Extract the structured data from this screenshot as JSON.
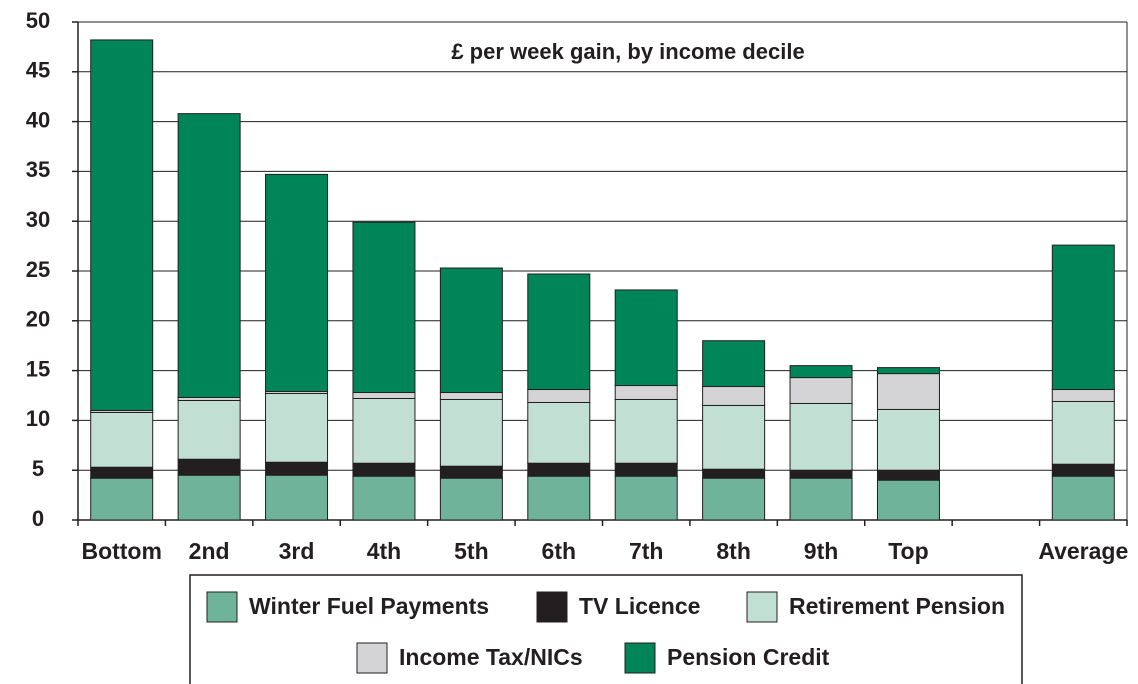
{
  "chart_data": {
    "type": "stacked_bar",
    "title": "£ per week gain, by income decile",
    "categories": [
      "Bottom",
      "2nd",
      "3rd",
      "4th",
      "5th",
      "6th",
      "7th",
      "8th",
      "9th",
      "Top",
      null,
      "Average"
    ],
    "series": [
      {
        "name": "Winter Fuel Payments",
        "color": "#6fb39a",
        "values": [
          4.2,
          4.5,
          4.5,
          4.4,
          4.2,
          4.4,
          4.4,
          4.2,
          4.2,
          4.0,
          null,
          4.4
        ]
      },
      {
        "name": "TV Licence",
        "color": "#231f20",
        "values": [
          1.1,
          1.6,
          1.3,
          1.3,
          1.2,
          1.3,
          1.3,
          0.9,
          0.8,
          1.0,
          null,
          1.2
        ]
      },
      {
        "name": "Retirement Pension",
        "color": "#c2dfd3",
        "values": [
          5.5,
          5.9,
          6.9,
          6.5,
          6.7,
          6.1,
          6.4,
          6.4,
          6.7,
          6.1,
          null,
          6.3
        ]
      },
      {
        "name": "Income Tax/NICs",
        "color": "#d4d4d6",
        "values": [
          0.2,
          0.3,
          0.2,
          0.6,
          0.7,
          1.3,
          1.4,
          1.9,
          2.6,
          3.6,
          null,
          1.2
        ]
      },
      {
        "name": "Pension Credit",
        "color": "#008558",
        "values": [
          37.2,
          28.5,
          21.8,
          17.1,
          12.5,
          11.6,
          9.6,
          4.6,
          1.2,
          0.6,
          null,
          14.5
        ]
      }
    ],
    "ylim": [
      0,
      50
    ],
    "yticks": [
      0,
      5,
      10,
      15,
      20,
      25,
      30,
      35,
      40,
      45,
      50
    ],
    "grid": true
  }
}
